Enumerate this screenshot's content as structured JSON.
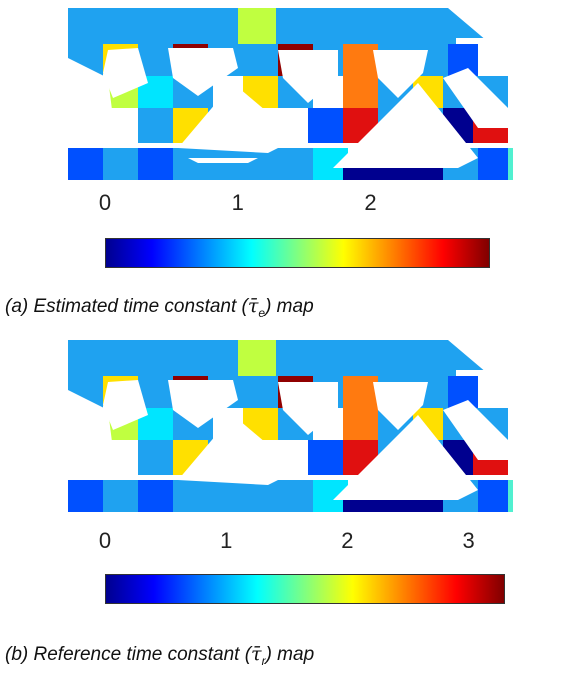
{
  "panels": [
    {
      "id": "a",
      "caption_prefix": "(a) Estimated time constant (",
      "caption_symbol": "τ̄",
      "caption_sub": "e",
      "caption_suffix": ") map",
      "colorbar": {
        "ticks": [
          "0",
          "1",
          "2"
        ],
        "tick_values": [
          0,
          1,
          2
        ],
        "max": 2.9
      }
    },
    {
      "id": "b",
      "caption_prefix": "(b) Reference time constant (",
      "caption_symbol": "τ̄",
      "caption_sub": "r",
      "caption_suffix": ") map",
      "colorbar": {
        "ticks": [
          "0",
          "1",
          "2",
          "3"
        ],
        "tick_values": [
          0,
          1,
          2,
          3
        ],
        "max": 3.3
      }
    }
  ],
  "colormap": "jet",
  "colors": {
    "dark_blue": "#00008f",
    "blue": "#0050ff",
    "light_blue": "#1fa2f0",
    "cyan": "#00e5ff",
    "aqua": "#50f0d0",
    "green_yellow": "#c0ff40",
    "yellow": "#ffe000",
    "orange": "#ff7a10",
    "red": "#e01010",
    "dark_red": "#900000"
  }
}
